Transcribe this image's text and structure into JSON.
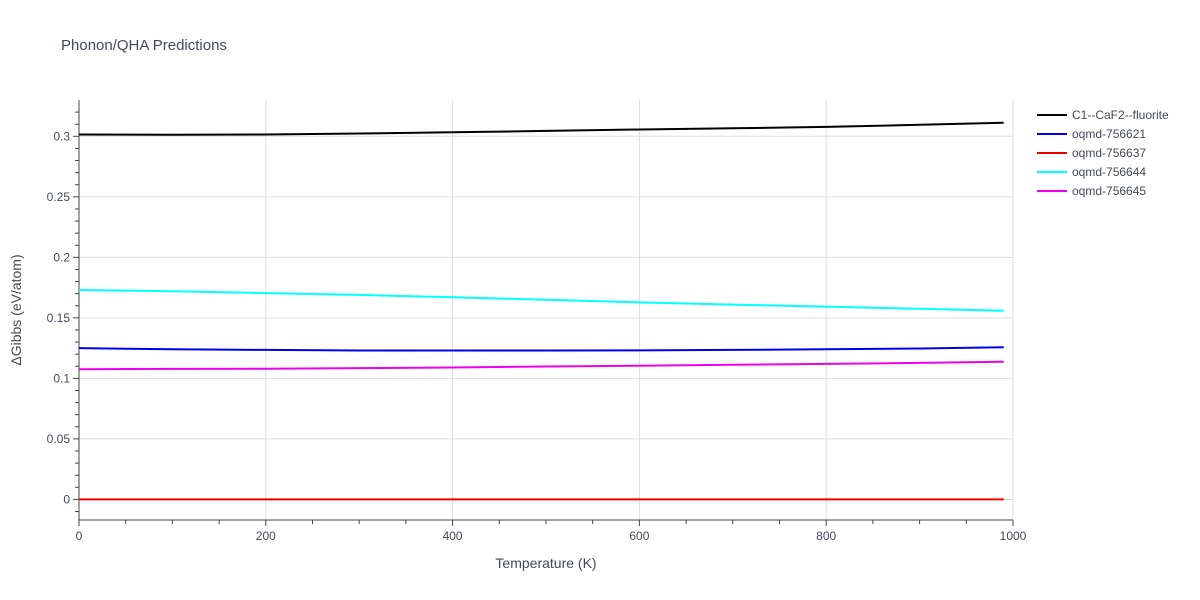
{
  "chart_data": {
    "type": "line",
    "title": "Phonon/QHA Predictions",
    "xlabel": "Temperature (K)",
    "ylabel": "ΔGibbs (eV/atom)",
    "xlim": [
      0,
      1000
    ],
    "ylim": [
      -0.017,
      0.33
    ],
    "x_ticks": [
      0,
      200,
      400,
      600,
      800,
      1000
    ],
    "y_ticks": [
      0,
      0.05,
      0.1,
      0.15,
      0.2,
      0.25,
      0.3
    ],
    "x_tick_labels": [
      "0",
      "200",
      "400",
      "600",
      "800",
      "1000"
    ],
    "y_tick_labels": [
      "0",
      "0.05",
      "0.1",
      "0.15",
      "0.2",
      "0.25",
      "0.3"
    ],
    "grid": true,
    "legend_position": "top-right, outside plot",
    "x": [
      0,
      100,
      200,
      300,
      400,
      500,
      600,
      700,
      800,
      900,
      990
    ],
    "series": [
      {
        "name": "C1--CaF2--fluorite",
        "color": "#000000",
        "values": [
          0.3015,
          0.3013,
          0.3015,
          0.3023,
          0.3033,
          0.3045,
          0.3056,
          0.3066,
          0.3078,
          0.3095,
          0.3112
        ]
      },
      {
        "name": "oqmd-756621",
        "color": "#0000ee",
        "values": [
          0.125,
          0.124,
          0.1235,
          0.123,
          0.123,
          0.123,
          0.1231,
          0.1235,
          0.124,
          0.1247,
          0.1257
        ]
      },
      {
        "name": "oqmd-756637",
        "color": "#ee0000",
        "values": [
          0,
          0,
          0,
          0,
          0,
          0,
          0,
          0,
          0,
          0,
          0
        ]
      },
      {
        "name": "oqmd-756644",
        "color": "#00ffff",
        "values": [
          0.173,
          0.172,
          0.1705,
          0.169,
          0.167,
          0.165,
          0.1628,
          0.161,
          0.1593,
          0.1575,
          0.1558
        ]
      },
      {
        "name": "oqmd-756645",
        "color": "#ee00ee",
        "values": [
          0.1076,
          0.1078,
          0.108,
          0.1085,
          0.109,
          0.1098,
          0.1105,
          0.1112,
          0.112,
          0.1128,
          0.1137
        ]
      }
    ]
  }
}
